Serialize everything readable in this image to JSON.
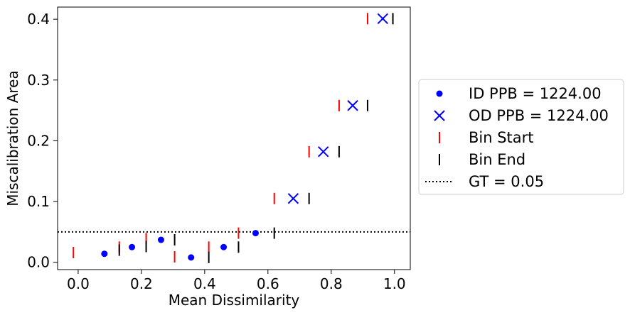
{
  "chart_data": {
    "type": "scatter",
    "xlabel": "Mean Dissimilarity",
    "ylabel": "Miscalibration Area",
    "xlim": [
      -0.065,
      1.05
    ],
    "ylim": [
      -0.012,
      0.42
    ],
    "xticks": [
      0.0,
      0.2,
      0.4,
      0.6,
      0.8,
      1.0
    ],
    "xtick_labels": [
      "0.0",
      "0.2",
      "0.4",
      "0.6",
      "0.8",
      "1.0"
    ],
    "yticks": [
      0.0,
      0.1,
      0.2,
      0.3,
      0.4
    ],
    "ytick_labels": [
      "0.0",
      "0.1",
      "0.2",
      "0.3",
      "0.4"
    ],
    "grid": false,
    "legend_position": "right",
    "series": [
      {
        "name": "ID PPB = 1224.00",
        "marker": "dot",
        "color": "#0000ff",
        "points": [
          [
            0.083,
            0.014
          ],
          [
            0.17,
            0.025
          ],
          [
            0.262,
            0.037
          ],
          [
            0.357,
            0.008
          ],
          [
            0.46,
            0.025
          ],
          [
            0.561,
            0.048
          ]
        ]
      },
      {
        "name": "OD PPB = 1224.00",
        "marker": "x",
        "color": "#0000ff",
        "points": [
          [
            0.68,
            0.105
          ],
          [
            0.775,
            0.182
          ],
          [
            0.868,
            0.258
          ],
          [
            0.963,
            0.401
          ]
        ]
      },
      {
        "name": "Bin Start",
        "marker": "vline",
        "color": "#ff0000",
        "points": [
          [
            -0.015,
            0.016
          ],
          [
            0.13,
            0.025
          ],
          [
            0.215,
            0.039
          ],
          [
            0.305,
            0.009
          ],
          [
            0.413,
            0.025
          ],
          [
            0.507,
            0.048
          ],
          [
            0.62,
            0.105
          ],
          [
            0.73,
            0.182
          ],
          [
            0.825,
            0.258
          ],
          [
            0.915,
            0.401
          ]
        ]
      },
      {
        "name": "Bin End",
        "marker": "vline",
        "color": "#000000",
        "points": [
          [
            0.13,
            0.02
          ],
          [
            0.215,
            0.026
          ],
          [
            0.305,
            0.037
          ],
          [
            0.413,
            0.008
          ],
          [
            0.507,
            0.025
          ],
          [
            0.62,
            0.048
          ],
          [
            0.73,
            0.105
          ],
          [
            0.825,
            0.182
          ],
          [
            0.915,
            0.258
          ],
          [
            0.995,
            0.401
          ]
        ]
      }
    ],
    "reference_lines": [
      {
        "name": "GT = 0.05",
        "orientation": "horizontal",
        "y": 0.05,
        "style": "dotted",
        "color": "#000000"
      }
    ],
    "legend": [
      {
        "label": "ID PPB = 1224.00",
        "marker": "dot",
        "color": "#0000ff"
      },
      {
        "label": "OD PPB = 1224.00",
        "marker": "x",
        "color": "#0000ff"
      },
      {
        "label": "Bin Start",
        "marker": "vline",
        "color": "#ff0000"
      },
      {
        "label": "Bin End",
        "marker": "vline",
        "color": "#000000"
      },
      {
        "label": "GT = 0.05",
        "marker": "dotted-line",
        "color": "#000000"
      }
    ]
  }
}
